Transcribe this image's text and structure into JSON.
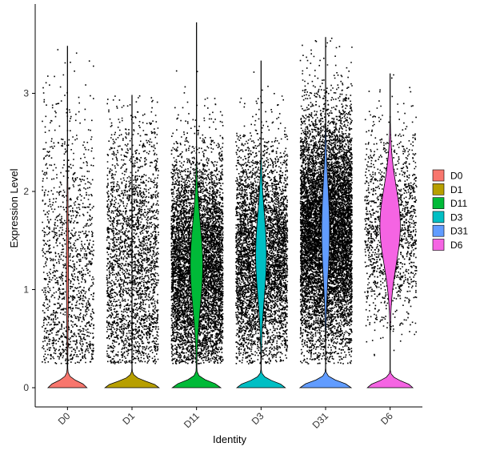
{
  "chart_data": {
    "type": "violin",
    "title": "",
    "xlabel": "Identity",
    "ylabel": "Expression Level",
    "ylim": [
      -0.25,
      3.85
    ],
    "y_ticks": [
      0,
      1,
      2,
      3
    ],
    "grid": false,
    "legend_position": "right",
    "categories": [
      "D0",
      "D1",
      "D11",
      "D3",
      "D31",
      "D6"
    ],
    "series": [
      {
        "name": "D0",
        "color": "#F8766D",
        "max": 3.48,
        "n_points": 1400,
        "zero_peak_width": 0.68,
        "upper_width": 0.035,
        "upper_center": 1.2,
        "upper_spread": 0.8
      },
      {
        "name": "D1",
        "color": "#B79F00",
        "max": 2.98,
        "n_points": 2600,
        "zero_peak_width": 0.95,
        "upper_width": 0.006,
        "upper_center": 1.3,
        "upper_spread": 0.7
      },
      {
        "name": "D11",
        "color": "#00BA38",
        "max": 3.72,
        "n_points": 6500,
        "zero_peak_width": 0.85,
        "upper_width": 0.22,
        "upper_center": 1.25,
        "upper_spread": 0.55
      },
      {
        "name": "D3",
        "color": "#00BFC4",
        "max": 3.33,
        "n_points": 5000,
        "zero_peak_width": 0.85,
        "upper_width": 0.19,
        "upper_center": 1.35,
        "upper_spread": 0.55
      },
      {
        "name": "D31",
        "color": "#619CFF",
        "max": 3.57,
        "n_points": 9000,
        "zero_peak_width": 0.9,
        "upper_width": 0.14,
        "upper_center": 1.6,
        "upper_spread": 0.6
      },
      {
        "name": "D6",
        "color": "#F564E3",
        "max": 3.2,
        "n_points": 1500,
        "zero_peak_width": 0.8,
        "upper_width": 0.36,
        "upper_center": 1.65,
        "upper_spread": 0.5
      }
    ]
  }
}
